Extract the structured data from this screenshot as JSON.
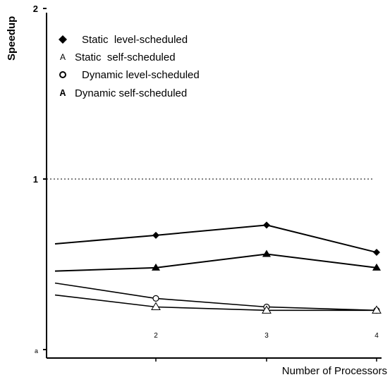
{
  "chart_data": {
    "type": "line",
    "ylabel": "Speedup",
    "xlabel": "Number of Processors",
    "x": [
      1,
      2,
      3,
      4
    ],
    "xticks": [
      "2",
      "3",
      "4"
    ],
    "yticks": [
      {
        "value": 0,
        "label": "a"
      },
      {
        "value": 1,
        "label": "1"
      },
      {
        "value": 2,
        "label": "2"
      }
    ],
    "ylim": [
      0,
      2
    ],
    "xlim": [
      1,
      4
    ],
    "reference_line": {
      "y": 1,
      "style": "dotted"
    },
    "legend_position": "top-left",
    "series": [
      {
        "name": "Static  level-scheduled",
        "marker": "diamond",
        "glyph": "◆",
        "values": [
          0.62,
          0.67,
          0.73,
          0.57
        ]
      },
      {
        "name": "Static  self-scheduled",
        "marker": "triangle-open",
        "glyph": "A",
        "values": [
          0.46,
          0.48,
          0.56,
          0.48
        ]
      },
      {
        "name": "Dynamic level-scheduled",
        "marker": "circle-open",
        "glyph": "o",
        "values": [
          0.39,
          0.3,
          0.25,
          0.23
        ]
      },
      {
        "name": "Dynamic self-scheduled",
        "marker": "triangle-filled",
        "glyph": "A",
        "values": [
          0.32,
          0.25,
          0.23,
          0.23
        ]
      }
    ]
  }
}
